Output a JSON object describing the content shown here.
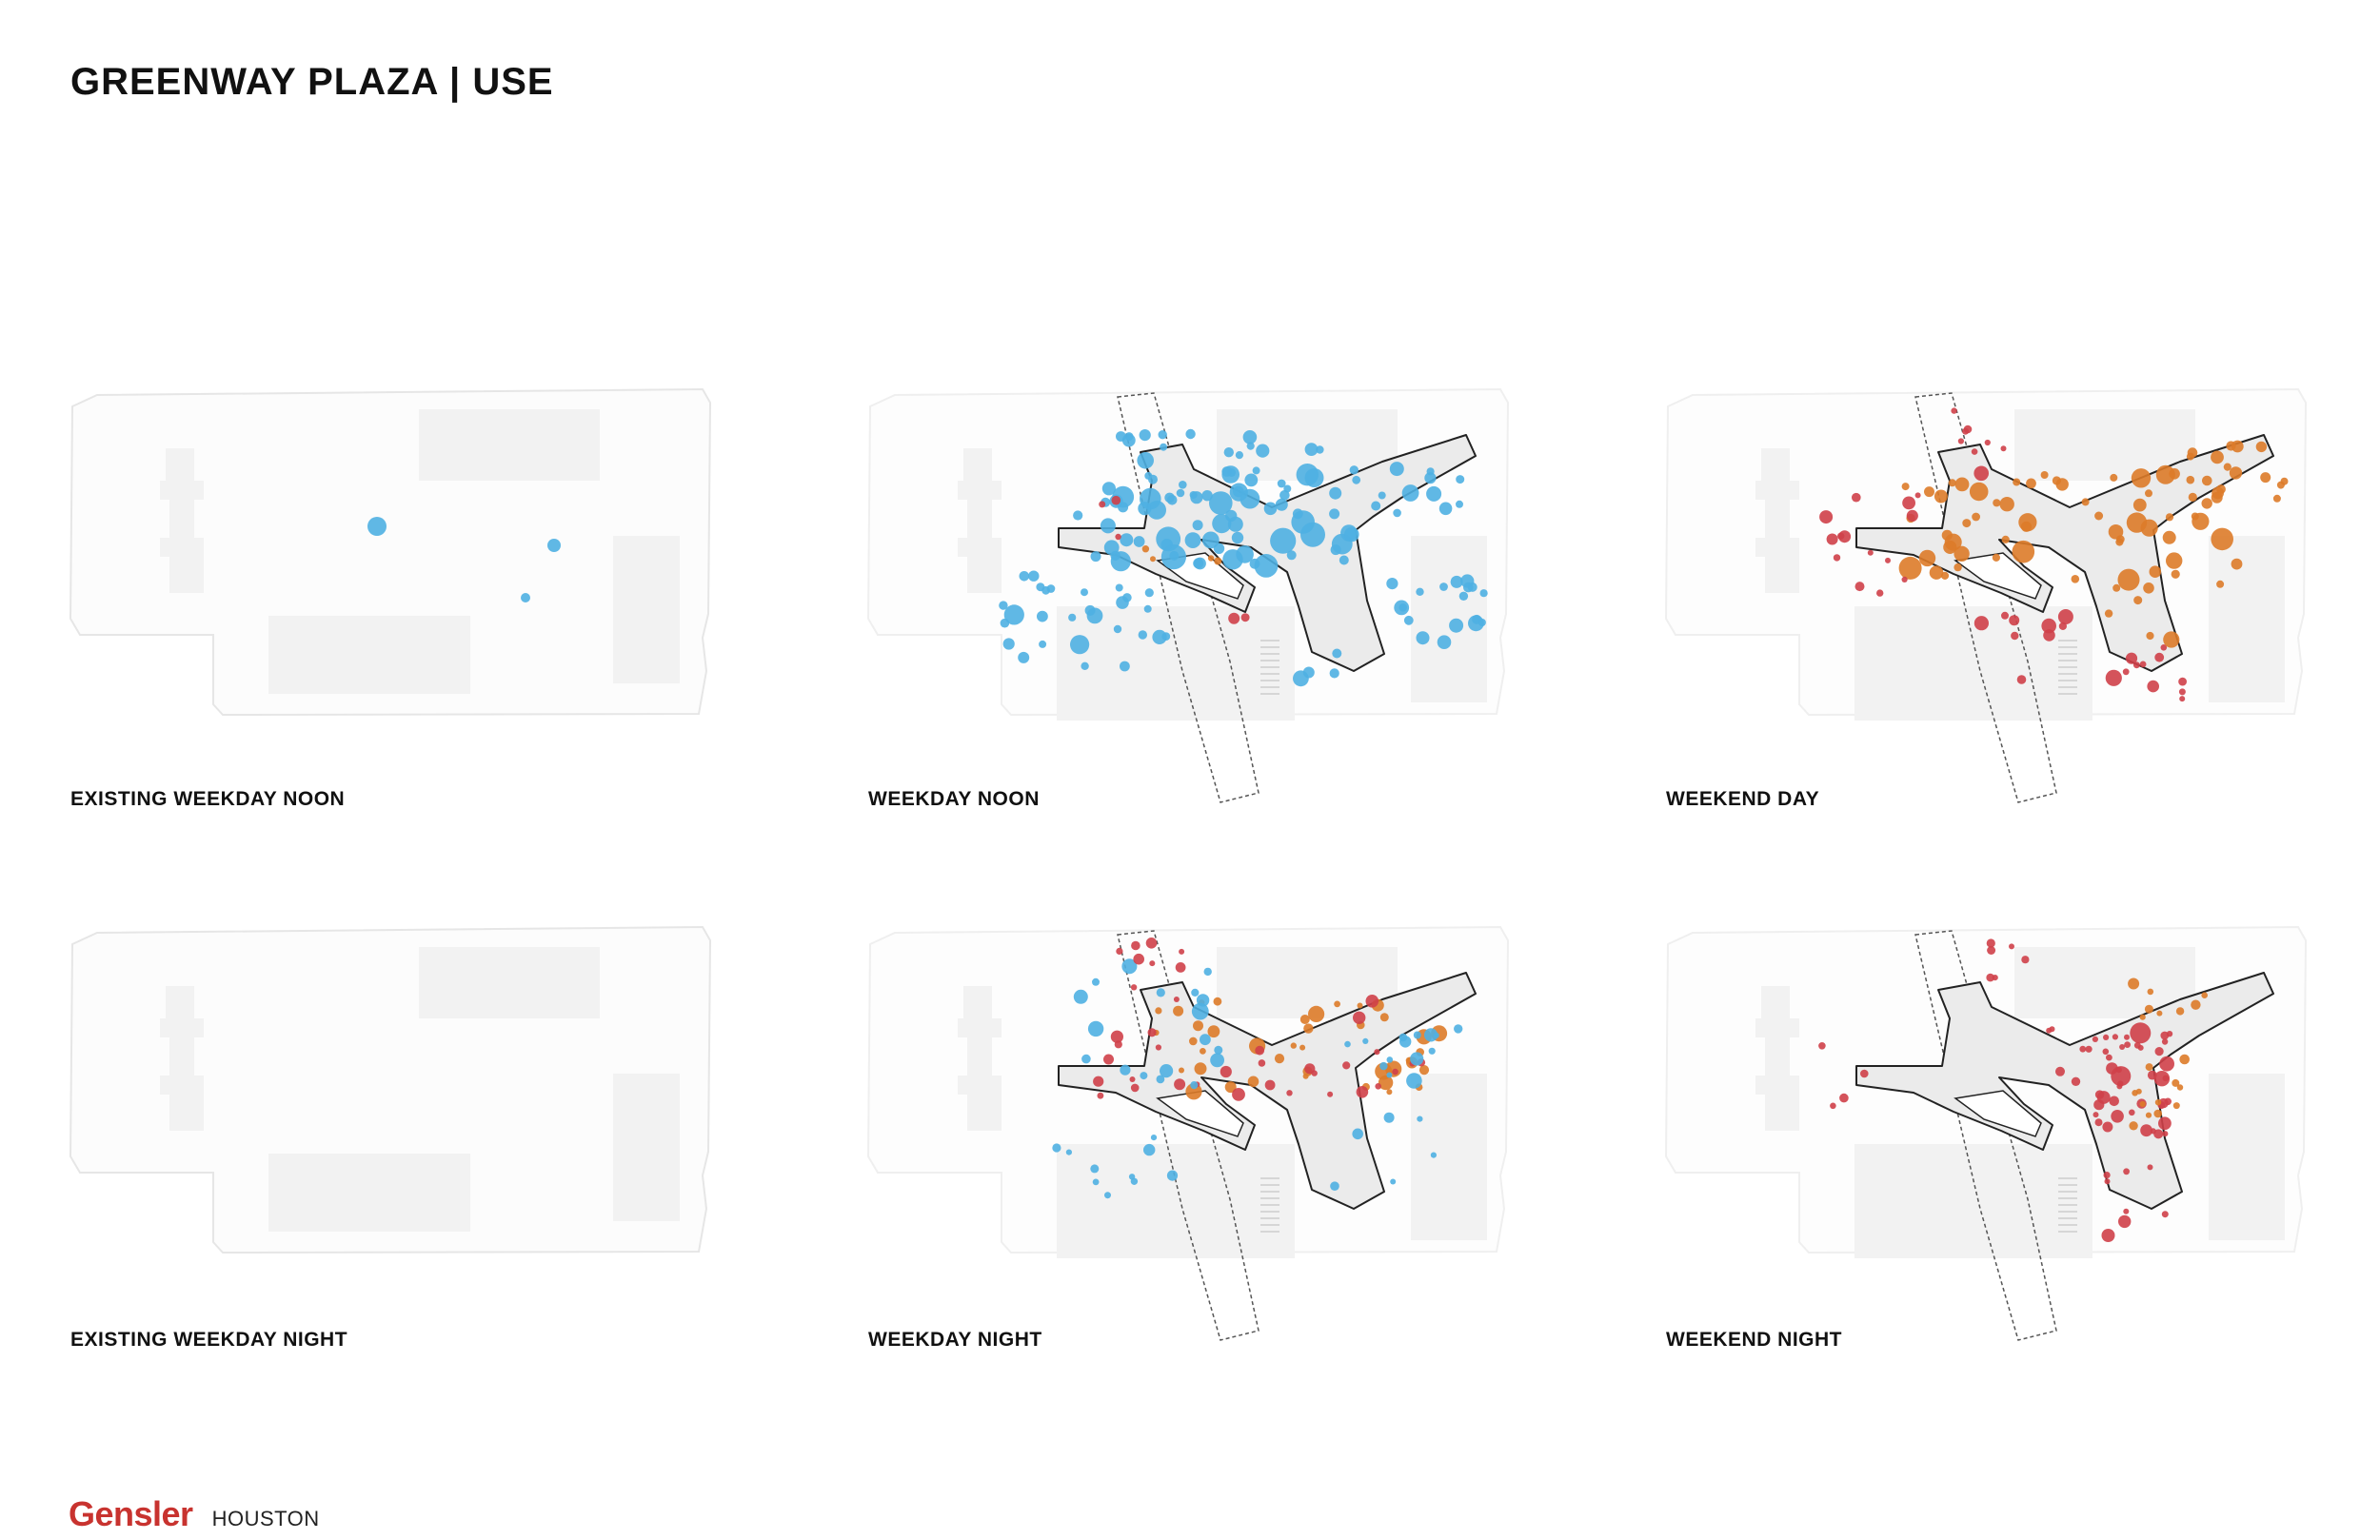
{
  "title": "GREENWAY PLAZA | USE",
  "colors": {
    "blue": "#4fb0e2",
    "orange": "#dd7b29",
    "red": "#cf4049",
    "block": "#f2f2f2",
    "plaza": "#ebebeb",
    "outline": "#222222"
  },
  "panels": [
    {
      "label": "EXISTING WEEKDAY NOON",
      "design": false
    },
    {
      "label": "WEEKDAY NOON",
      "design": true
    },
    {
      "label": "WEEKEND DAY",
      "design": true
    },
    {
      "label": "EXISTING WEEKDAY NIGHT",
      "design": false
    },
    {
      "label": "WEEKDAY NIGHT",
      "design": true
    },
    {
      "label": "WEEKEND NIGHT",
      "design": true
    }
  ],
  "footer": {
    "logo": "Gensler",
    "office": "HOUSTON"
  }
}
